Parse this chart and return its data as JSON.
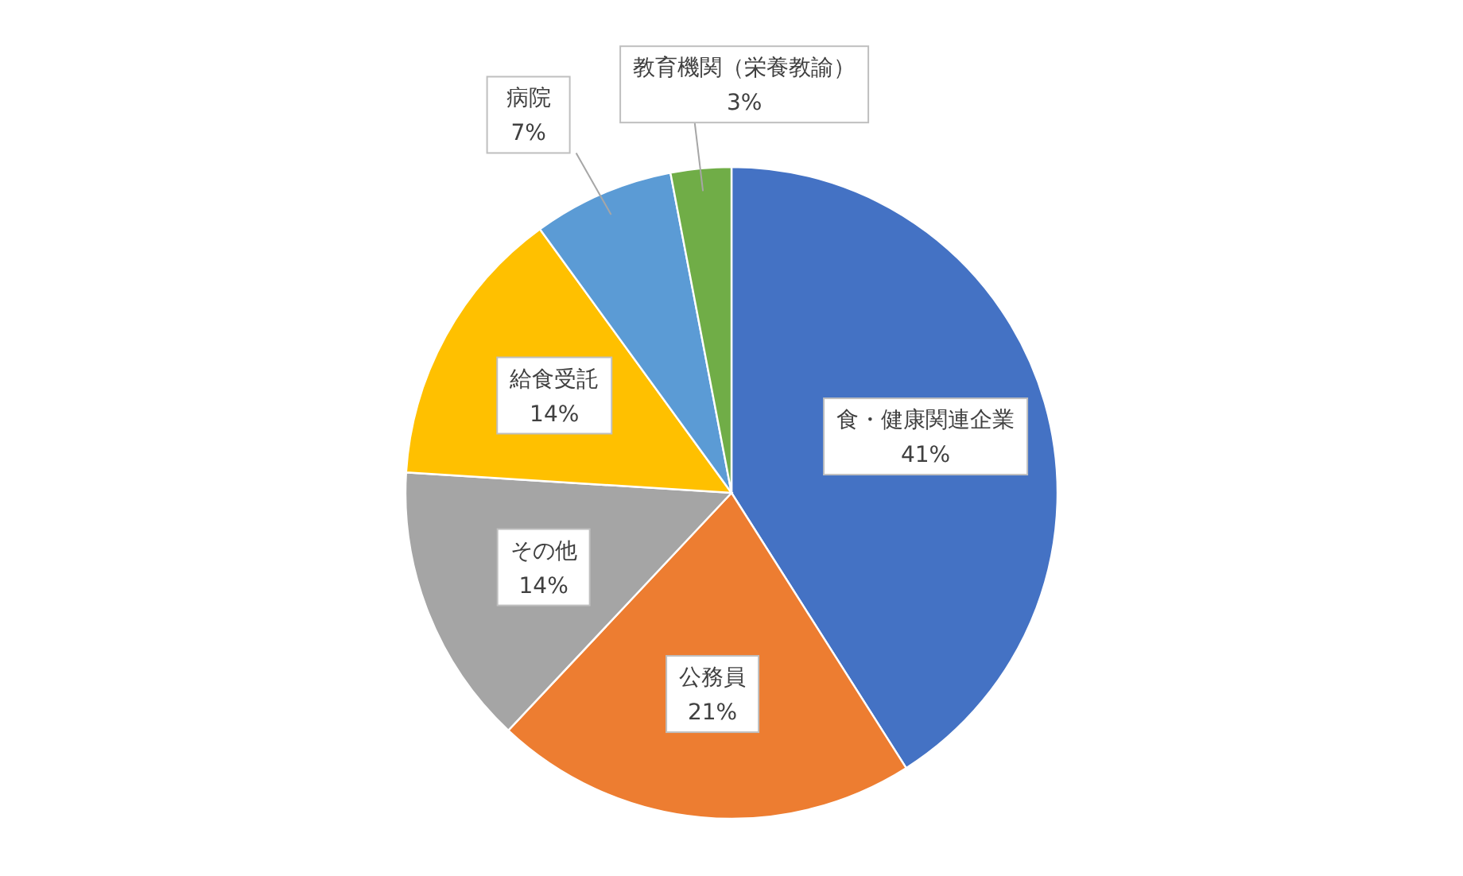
{
  "chart_data": {
    "type": "pie",
    "categories": [
      "食・健康関連企業",
      "公務員",
      "その他",
      "給食受託",
      "病院",
      "教育機関（栄養教諭）"
    ],
    "values": [
      41,
      21,
      14,
      14,
      7,
      3
    ],
    "value_labels": [
      "41%",
      "21%",
      "14%",
      "14%",
      "7%",
      "3%"
    ],
    "colors": [
      "#4472c4",
      "#ed7d31",
      "#a5a5a5",
      "#ffc000",
      "#5b9bd5",
      "#70ad47"
    ]
  }
}
